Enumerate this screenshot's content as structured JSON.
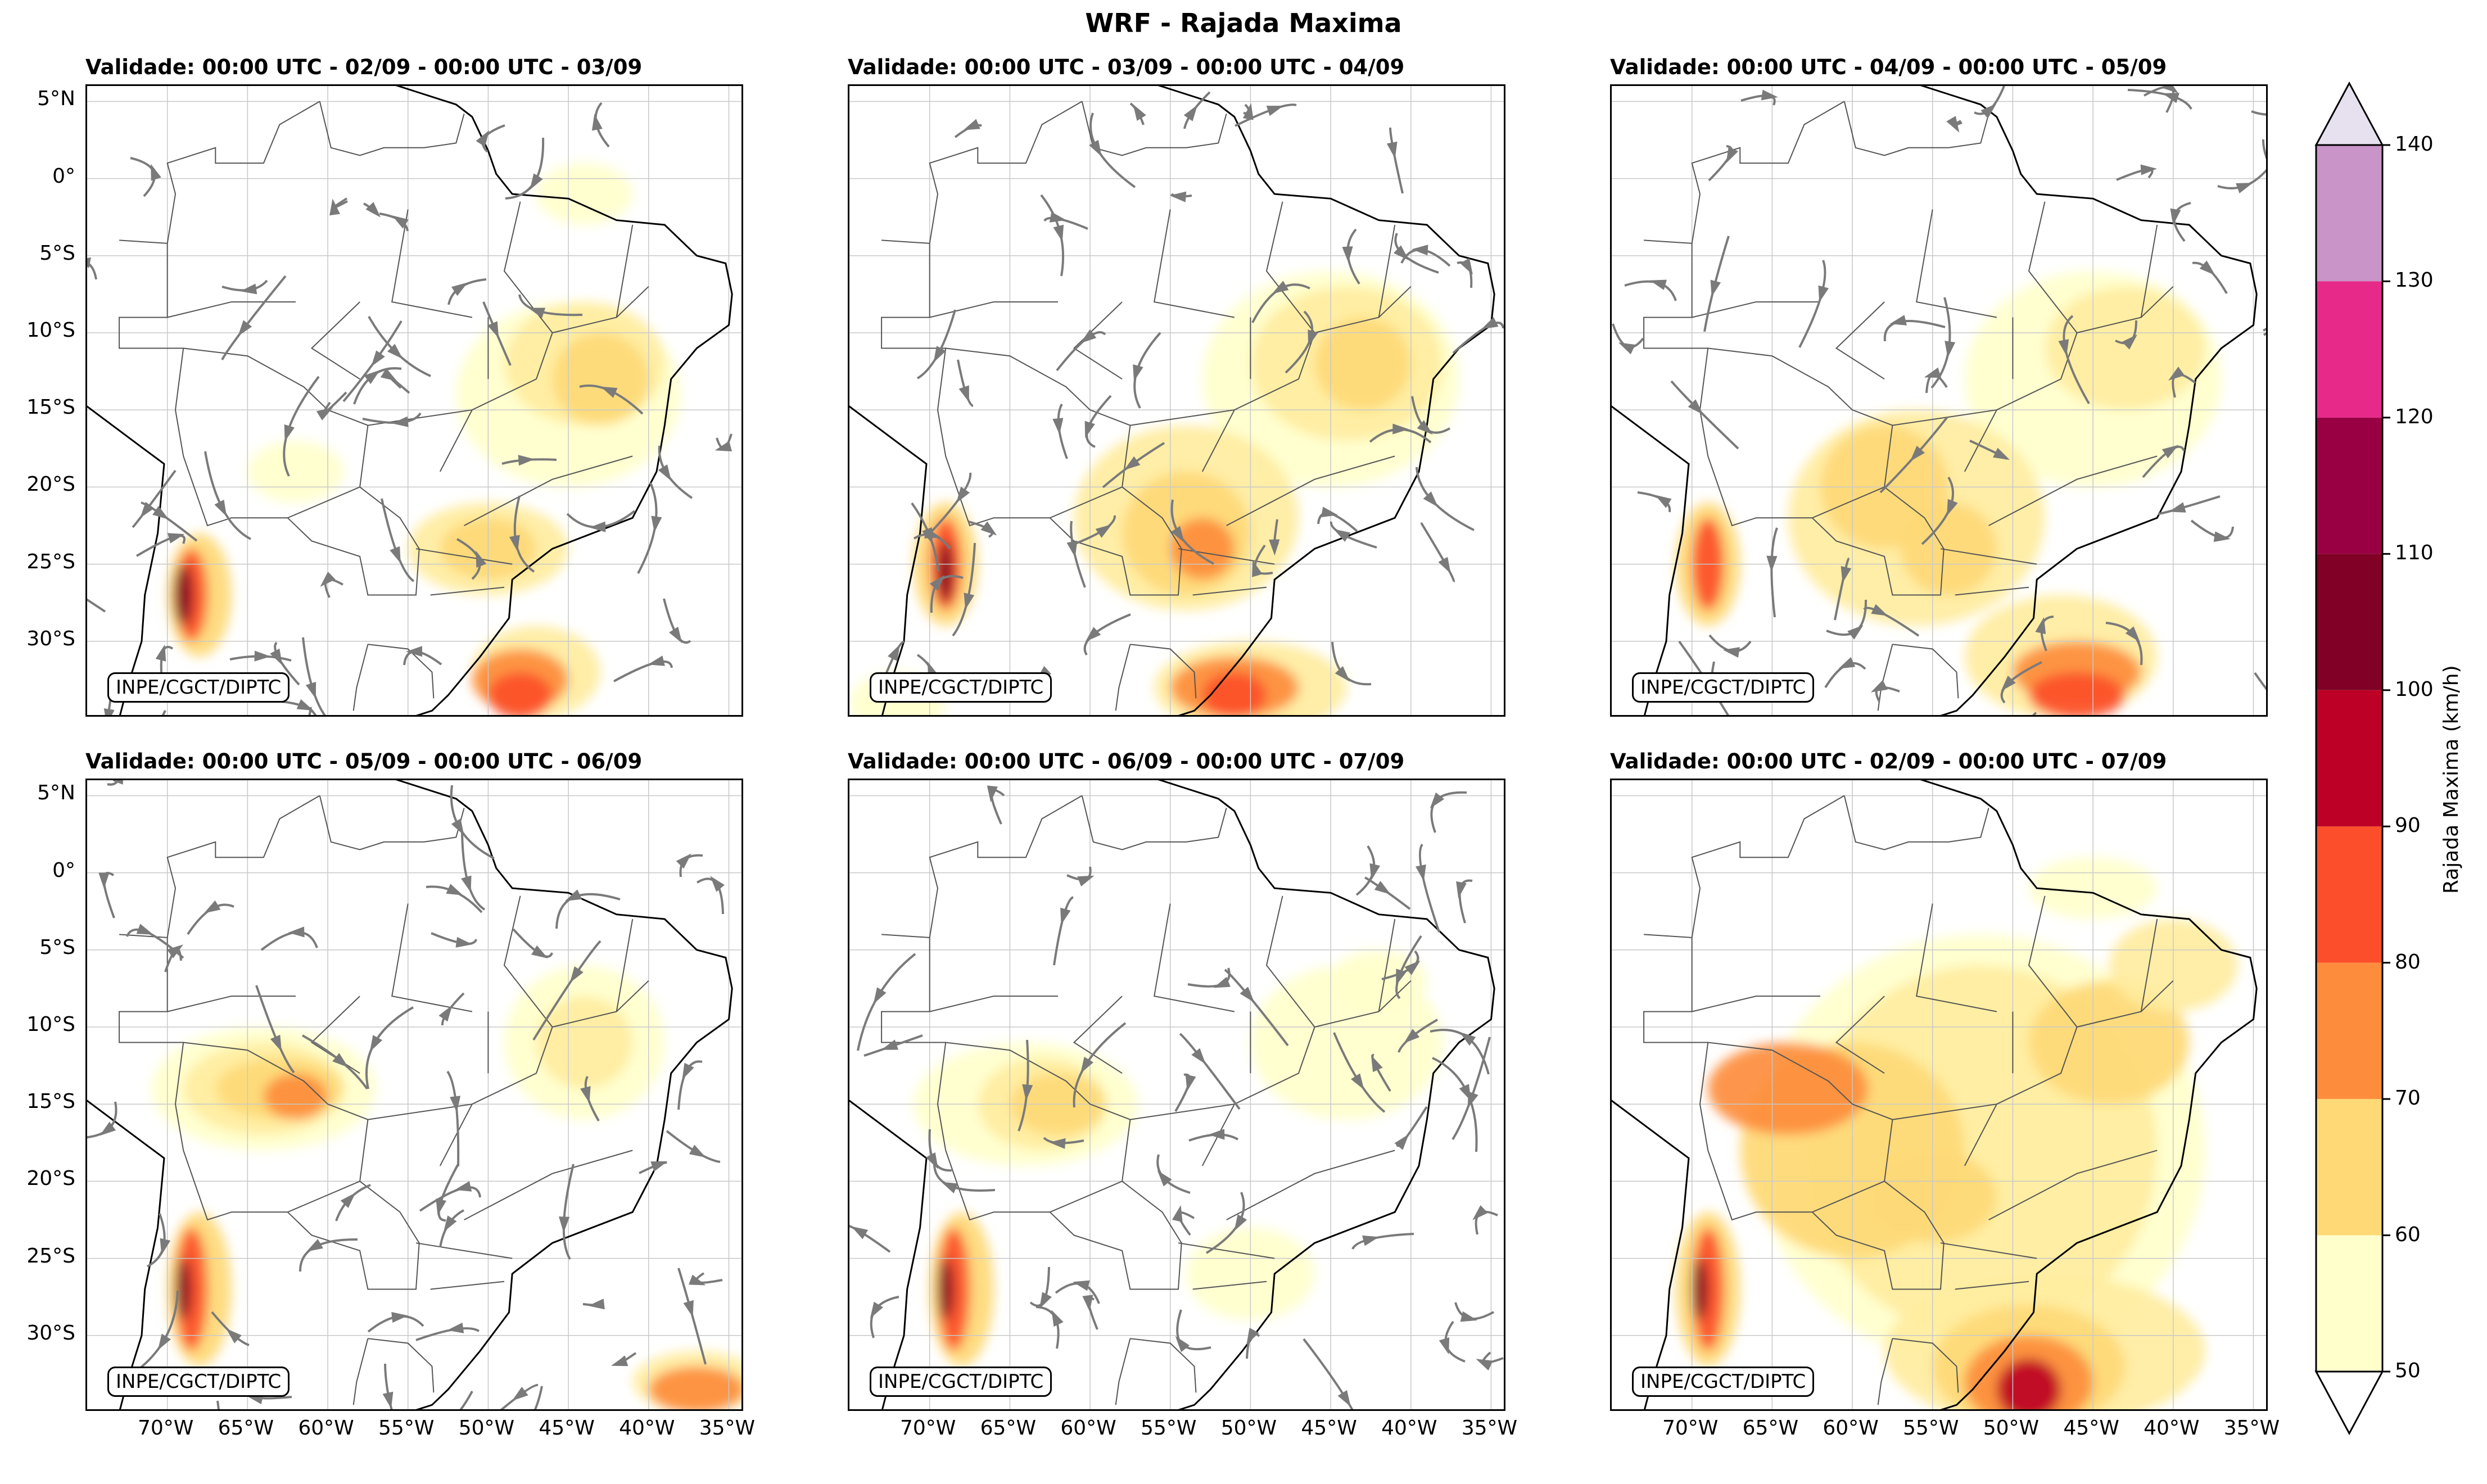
{
  "title": "WRF - Rajada Maxima",
  "credit": "INPE/CGCT/DIPTC",
  "panels": [
    {
      "title": "Validade: 00:00 UTC - 02/09 - 00:00 UTC - 03/09",
      "streamlines": true
    },
    {
      "title": "Validade: 00:00 UTC - 03/09 - 00:00 UTC - 04/09",
      "streamlines": true
    },
    {
      "title": "Validade: 00:00 UTC - 04/09 - 00:00 UTC - 05/09",
      "streamlines": true
    },
    {
      "title": "Validade: 00:00 UTC - 05/09 - 00:00 UTC - 06/09",
      "streamlines": true
    },
    {
      "title": "Validade: 00:00 UTC - 06/09 - 00:00 UTC - 07/09",
      "streamlines": true
    },
    {
      "title": "Validade: 00:00 UTC - 02/09 - 00:00 UTC - 07/09",
      "streamlines": false
    }
  ],
  "lat_ticks": [
    "5°N",
    "0°",
    "5°S",
    "10°S",
    "15°S",
    "20°S",
    "25°S",
    "30°S"
  ],
  "lon_ticks": [
    "70°W",
    "65°W",
    "60°W",
    "55°W",
    "50°W",
    "45°W",
    "40°W",
    "35°W"
  ],
  "colorbar": {
    "label": "Rajada Maxima (km/h)",
    "levels": [
      "50",
      "60",
      "70",
      "80",
      "90",
      "100",
      "110",
      "120",
      "130",
      "140"
    ],
    "colors": [
      "#ffffcc",
      "#ffeda0",
      "#fed976",
      "#fd8d3c",
      "#fc4e2a",
      "#bd0026",
      "#800026",
      "#990044",
      "#e7298a",
      "#c994c7",
      "#e7e1ef"
    ]
  }
}
